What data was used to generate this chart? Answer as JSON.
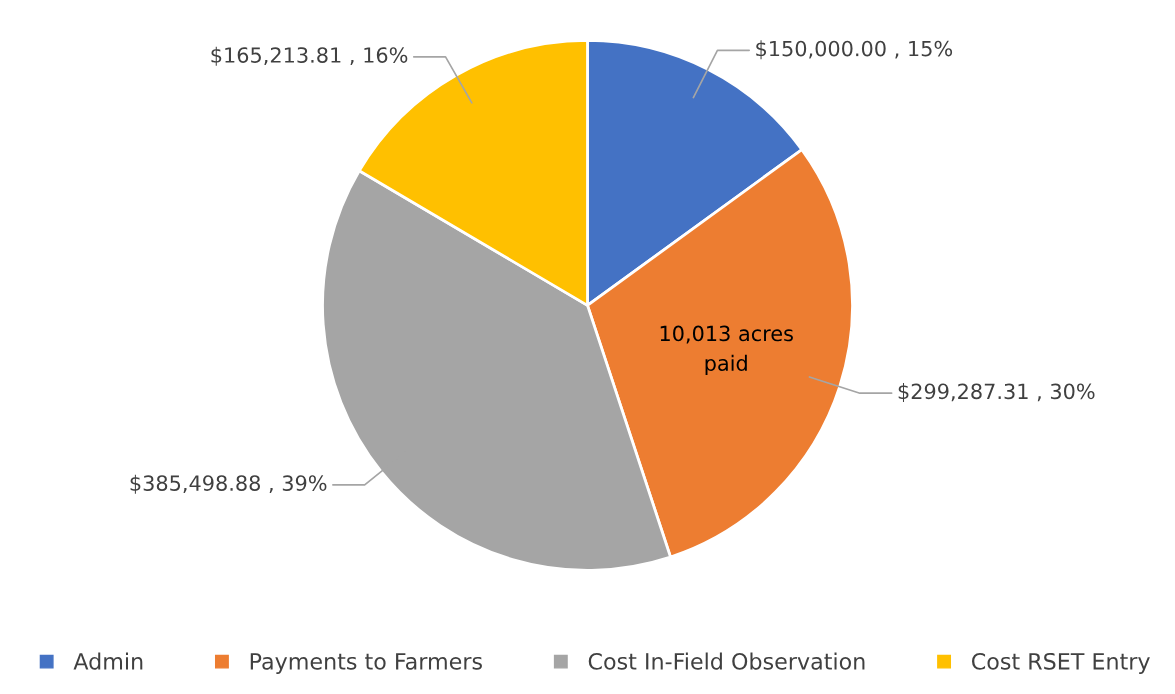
{
  "chart_data": {
    "type": "pie",
    "categories": [
      "Admin",
      "Payments to Farmers",
      "Cost In-Field Observation",
      "Cost RSET Entry"
    ],
    "values": [
      150000.0,
      299287.31,
      385498.88,
      165213.81
    ],
    "value_labels": [
      "$150,000.00 , 15%",
      "$299,287.31 , 30%",
      "$385,498.88 , 39%",
      "$165,213.81 , 16%"
    ],
    "colors": [
      "#4472c4",
      "#ed7d31",
      "#a5a5a5",
      "#ffc000"
    ],
    "annotations": [
      {
        "text": "10,013 acres\npaid",
        "x": "Payments to Farmers"
      }
    ],
    "legend": "bottom"
  }
}
